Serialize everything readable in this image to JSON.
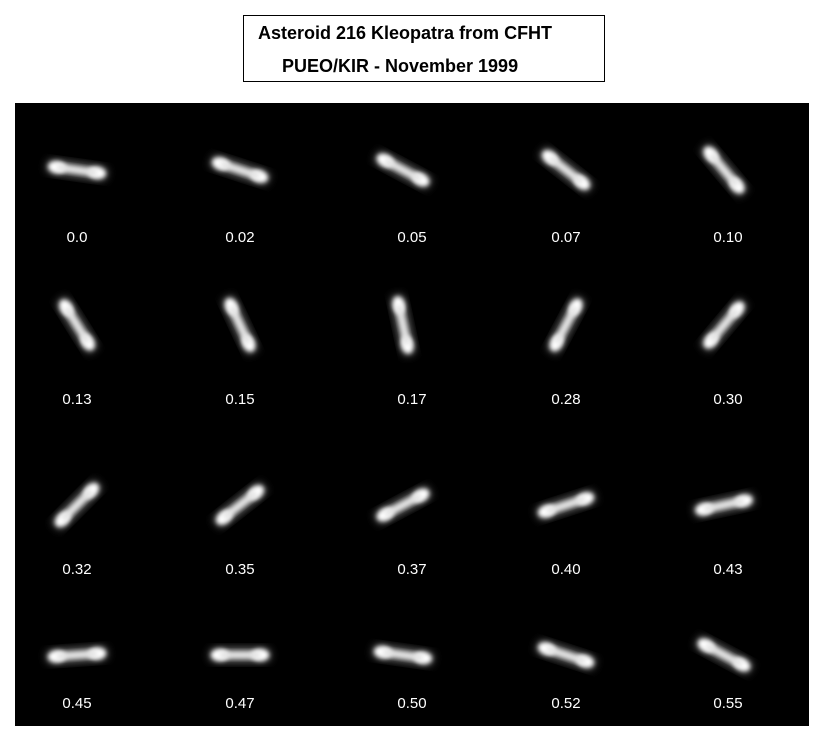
{
  "title": {
    "line1": "Asteroid 216 Kleopatra from CFHT",
    "line2": "PUEO/KIR - November 1999"
  },
  "frames": [
    {
      "phase": "0.0",
      "angle": 8
    },
    {
      "phase": "0.02",
      "angle": 18
    },
    {
      "phase": "0.05",
      "angle": 28
    },
    {
      "phase": "0.07",
      "angle": 38
    },
    {
      "phase": "0.10",
      "angle": 50
    },
    {
      "phase": "0.13",
      "angle": 58
    },
    {
      "phase": "0.15",
      "angle": 65
    },
    {
      "phase": "0.17",
      "angle": 78
    },
    {
      "phase": "0.28",
      "angle": -62
    },
    {
      "phase": "0.30",
      "angle": -50
    },
    {
      "phase": "0.32",
      "angle": -45
    },
    {
      "phase": "0.35",
      "angle": -38
    },
    {
      "phase": "0.37",
      "angle": -28
    },
    {
      "phase": "0.40",
      "angle": -18
    },
    {
      "phase": "0.43",
      "angle": -12
    },
    {
      "phase": "0.45",
      "angle": -4
    },
    {
      "phase": "0.47",
      "angle": 0
    },
    {
      "phase": "0.50",
      "angle": 8
    },
    {
      "phase": "0.52",
      "angle": 18
    },
    {
      "phase": "0.55",
      "angle": 28
    }
  ]
}
